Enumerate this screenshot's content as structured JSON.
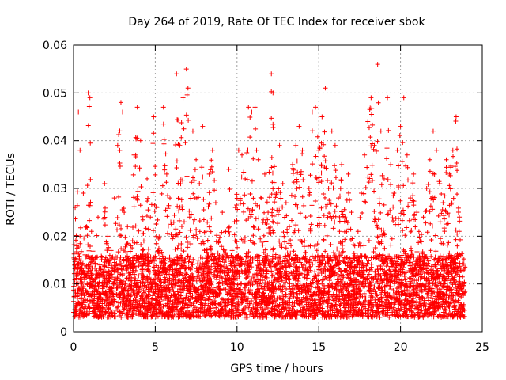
{
  "chart_data": {
    "type": "scatter",
    "title": "Day 264 of 2019, Rate Of TEC Index for receiver sbok",
    "xlabel": "GPS time / hours",
    "ylabel": "ROTI / TECUs",
    "xlim": [
      0,
      25
    ],
    "ylim": [
      0,
      0.06
    ],
    "x_ticks": [
      "0",
      "5",
      "10",
      "15",
      "20",
      "25"
    ],
    "y_ticks": [
      "0",
      "0.01",
      "0.02",
      "0.03",
      "0.04",
      "0.05",
      "0.06"
    ],
    "grid": true,
    "marker": "+",
    "color": "#ff0000",
    "series": [
      {
        "name": "ROTI",
        "x": [
          0.1,
          0.2,
          0.3,
          0.4,
          0.5,
          0.6,
          0.8,
          0.9,
          1.0,
          1.1,
          1.3,
          1.5,
          1.7,
          1.9,
          2.1,
          2.3,
          2.5,
          2.7,
          2.9,
          3.0,
          3.1,
          3.3,
          3.5,
          3.7,
          3.9,
          4.1,
          4.3,
          4.5,
          4.7,
          4.9,
          5.1,
          5.3,
          5.5,
          5.7,
          5.9,
          6.1,
          6.3,
          6.5,
          6.7,
          6.9,
          7.0,
          7.1,
          7.3,
          7.5,
          7.7,
          7.9,
          8.1,
          8.3,
          8.5,
          8.7,
          8.9,
          9.1,
          9.3,
          9.5,
          9.7,
          9.9,
          10.1,
          10.3,
          10.5,
          10.7,
          10.9,
          11.1,
          11.3,
          11.5,
          11.7,
          11.9,
          12.1,
          12.2,
          12.4,
          12.6,
          12.8,
          13.0,
          13.2,
          13.4,
          13.6,
          13.8,
          14.0,
          14.2,
          14.4,
          14.6,
          14.8,
          15.0,
          15.2,
          15.4,
          15.6,
          15.8,
          16.0,
          16.2,
          16.4,
          16.6,
          16.8,
          17.0,
          17.2,
          17.4,
          17.6,
          17.8,
          18.0,
          18.2,
          18.4,
          18.6,
          18.8,
          19.0,
          19.2,
          19.4,
          19.6,
          19.8,
          20.0,
          20.2,
          20.4,
          20.6,
          20.8,
          21.0,
          21.2,
          21.4,
          21.6,
          21.8,
          22.0,
          22.2,
          22.4,
          22.6,
          22.8,
          23.0,
          23.2,
          23.4,
          23.6,
          23.8
        ],
        "y": [
          0.026,
          0.018,
          0.046,
          0.038,
          0.012,
          0.029,
          0.022,
          0.05,
          0.049,
          0.021,
          0.015,
          0.024,
          0.012,
          0.031,
          0.02,
          0.017,
          0.028,
          0.039,
          0.048,
          0.046,
          0.025,
          0.022,
          0.018,
          0.037,
          0.047,
          0.04,
          0.019,
          0.032,
          0.024,
          0.045,
          0.026,
          0.017,
          0.047,
          0.033,
          0.028,
          0.02,
          0.054,
          0.039,
          0.049,
          0.055,
          0.051,
          0.024,
          0.042,
          0.036,
          0.031,
          0.043,
          0.021,
          0.033,
          0.038,
          0.027,
          0.019,
          0.025,
          0.021,
          0.034,
          0.017,
          0.026,
          0.038,
          0.037,
          0.032,
          0.047,
          0.046,
          0.047,
          0.036,
          0.028,
          0.033,
          0.025,
          0.054,
          0.05,
          0.029,
          0.039,
          0.031,
          0.027,
          0.022,
          0.035,
          0.039,
          0.043,
          0.038,
          0.024,
          0.03,
          0.046,
          0.047,
          0.038,
          0.045,
          0.051,
          0.03,
          0.042,
          0.039,
          0.028,
          0.035,
          0.024,
          0.033,
          0.025,
          0.018,
          0.021,
          0.029,
          0.037,
          0.044,
          0.049,
          0.039,
          0.056,
          0.042,
          0.032,
          0.049,
          0.035,
          0.029,
          0.038,
          0.043,
          0.049,
          0.037,
          0.028,
          0.033,
          0.025,
          0.019,
          0.024,
          0.03,
          0.036,
          0.042,
          0.038,
          0.031,
          0.027,
          0.036,
          0.033,
          0.038,
          0.045,
          0.024,
          0.015
        ],
        "baseline_band": [
          0.003,
          0.016
        ]
      }
    ]
  }
}
